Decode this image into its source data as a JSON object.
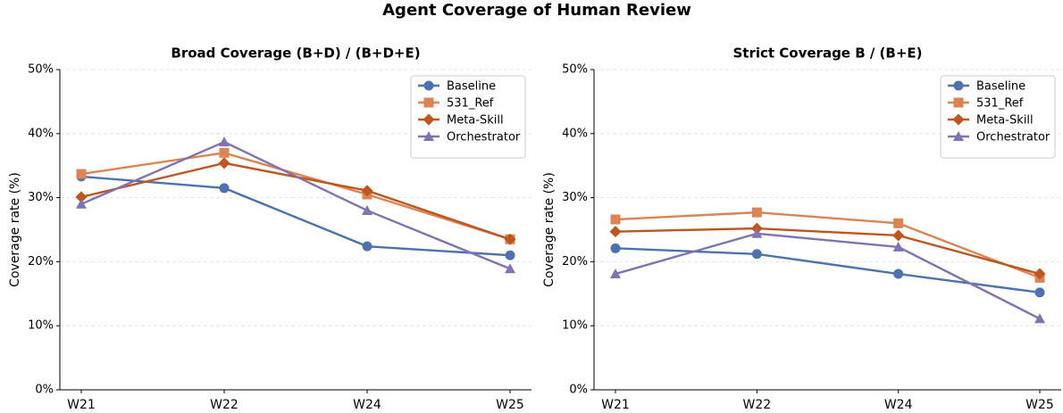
{
  "title": "Agent Coverage of Human Review",
  "chart_data": [
    {
      "type": "line",
      "title": "Broad Coverage  (B+D) / (B+D+E)",
      "y_label": "Coverage rate (%)",
      "categories": [
        "W21",
        "W22",
        "W24",
        "W25"
      ],
      "ylim": [
        0,
        50
      ],
      "yticks": [
        {
          "value": 0,
          "label": "0%"
        },
        {
          "value": 10,
          "label": "10%"
        },
        {
          "value": 20,
          "label": "20%"
        },
        {
          "value": 30,
          "label": "30%"
        },
        {
          "value": 40,
          "label": "40%"
        },
        {
          "value": 50,
          "label": "50%"
        }
      ],
      "grid": true,
      "legend": "upper right",
      "series": [
        {
          "name": "Baseline",
          "color": "#4c72b0",
          "marker": "circle",
          "values": [
            33.3,
            31.5,
            22.4,
            21.0
          ]
        },
        {
          "name": "531_Ref",
          "color": "#dd8452",
          "marker": "square",
          "values": [
            33.7,
            37.0,
            30.5,
            23.5
          ]
        },
        {
          "name": "Meta-Skill",
          "color": "#c0561d",
          "marker": "diamond",
          "values": [
            30.1,
            35.4,
            31.1,
            23.5
          ]
        },
        {
          "name": "Orchestrator",
          "color": "#8172b3",
          "marker": "triangle",
          "values": [
            29.0,
            38.7,
            28.0,
            18.9
          ]
        }
      ]
    },
    {
      "type": "line",
      "title": "Strict Coverage  B / (B+E)",
      "y_label": "Coverage rate (%)",
      "categories": [
        "W21",
        "W22",
        "W24",
        "W25"
      ],
      "ylim": [
        0,
        50
      ],
      "yticks": [
        {
          "value": 0,
          "label": "0%"
        },
        {
          "value": 10,
          "label": "10%"
        },
        {
          "value": 20,
          "label": "20%"
        },
        {
          "value": 30,
          "label": "30%"
        },
        {
          "value": 40,
          "label": "40%"
        },
        {
          "value": 50,
          "label": "50%"
        }
      ],
      "grid": true,
      "legend": "upper right",
      "series": [
        {
          "name": "Baseline",
          "color": "#4c72b0",
          "marker": "circle",
          "values": [
            22.1,
            21.2,
            18.1,
            15.2
          ]
        },
        {
          "name": "531_Ref",
          "color": "#dd8452",
          "marker": "square",
          "values": [
            26.6,
            27.7,
            26.0,
            17.5
          ]
        },
        {
          "name": "Meta-Skill",
          "color": "#c0561d",
          "marker": "diamond",
          "values": [
            24.7,
            25.2,
            24.1,
            18.1
          ]
        },
        {
          "name": "Orchestrator",
          "color": "#8172b3",
          "marker": "triangle",
          "values": [
            18.1,
            24.4,
            22.3,
            11.1
          ]
        }
      ]
    }
  ]
}
